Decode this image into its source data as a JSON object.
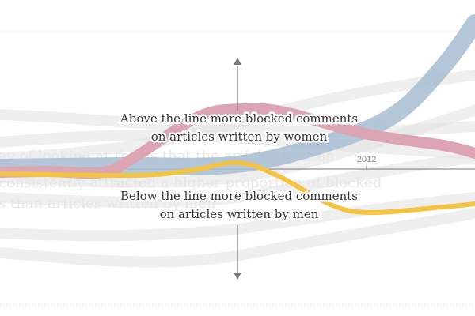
{
  "chart_data": {
    "type": "line",
    "x_ticks": [
      "2012"
    ],
    "annotations": {
      "above": [
        "Above the line more blocked comments",
        "on articles written by women"
      ],
      "below": [
        "Below the line more blocked comments",
        "on articles written by men"
      ]
    },
    "background_text": [
      "ay of looking at this is that the articles written",
      "consistently attracted a higher proportion of blocked",
      "s than articles written by men"
    ],
    "series": [
      {
        "color": "#dca5b3",
        "points": [
          [
            0,
            -4
          ],
          [
            60,
            -3
          ],
          [
            130,
            -4
          ],
          [
            170,
            15
          ],
          [
            250,
            66
          ],
          [
            305,
            76
          ],
          [
            360,
            72
          ],
          [
            460,
            45
          ],
          [
            560,
            30
          ],
          [
            600,
            20
          ]
        ]
      },
      {
        "color": "#a7bdd2",
        "points": [
          [
            0,
            2
          ],
          [
            150,
            4
          ],
          [
            300,
            6
          ],
          [
            420,
            35
          ],
          [
            500,
            70
          ],
          [
            560,
            130
          ],
          [
            600,
            185
          ]
        ]
      },
      {
        "color": "#f5c342",
        "points": [
          [
            0,
            -6
          ],
          [
            170,
            -8
          ],
          [
            240,
            -2
          ],
          [
            300,
            8
          ],
          [
            350,
            -8
          ],
          [
            420,
            -46
          ],
          [
            470,
            -55
          ],
          [
            560,
            -48
          ],
          [
            600,
            -44
          ]
        ]
      }
    ],
    "grid": true
  },
  "colors": {
    "pink": "#dca5b3",
    "blue": "#a7bdd2",
    "yellow": "#f5c342",
    "axis": "#777777"
  }
}
